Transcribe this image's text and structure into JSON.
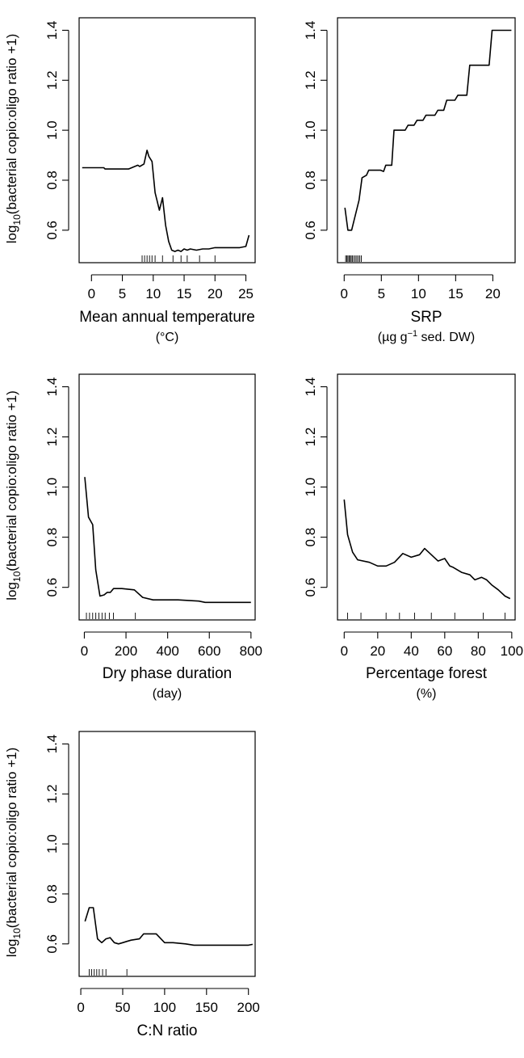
{
  "chart_data": [
    {
      "type": "line",
      "ylabel": "log",
      "ylabel_sub": "10",
      "ylabel_rest": "(bacterial copio:oligo ratio +1)",
      "xlabel": "Mean annual temperature",
      "xunit": "(°C)",
      "xunit_sup": "",
      "xunit_rest": "",
      "xlim": [
        -2,
        26.5
      ],
      "ylim": [
        0.47,
        1.45
      ],
      "xticks": [
        0,
        5,
        10,
        15,
        20,
        25
      ],
      "yticks": [
        0.6,
        0.8,
        1.0,
        1.2,
        1.4
      ],
      "ytick_labels": [
        "0.6",
        "0.8",
        "1.0",
        "1.2",
        "1.4"
      ],
      "x": [
        -1.5,
        2,
        2.2,
        6,
        7.5,
        7.8,
        8.5,
        9.0,
        9.3,
        9.8,
        10.3,
        10.6,
        11,
        11.5,
        12,
        12.5,
        13,
        13.5,
        14,
        14.5,
        15,
        15.5,
        16,
        17,
        18,
        19,
        20,
        21,
        24,
        25,
        25.5
      ],
      "y": [
        0.85,
        0.85,
        0.845,
        0.845,
        0.86,
        0.855,
        0.865,
        0.92,
        0.895,
        0.875,
        0.75,
        0.72,
        0.68,
        0.73,
        0.62,
        0.555,
        0.52,
        0.515,
        0.52,
        0.515,
        0.525,
        0.52,
        0.525,
        0.52,
        0.525,
        0.525,
        0.53,
        0.53,
        0.53,
        0.535,
        0.58
      ],
      "rug": [
        8.2,
        8.6,
        9.0,
        9.4,
        9.8,
        10.3,
        11.5,
        13.2,
        14.5,
        15.5,
        17.5,
        20.0
      ]
    },
    {
      "type": "line",
      "ylabel": "",
      "xlabel": "SRP",
      "xunit": "",
      "xunit_sup": "−1",
      "xunit_rest": "(µg g| sed. DW)",
      "xlim": [
        -0.9,
        23
      ],
      "ylim": [
        0.47,
        1.45
      ],
      "xticks": [
        0,
        5,
        10,
        15,
        20
      ],
      "yticks": [
        0.6,
        0.8,
        1.0,
        1.2,
        1.4
      ],
      "ytick_labels": [
        "0.6",
        "0.8",
        "1.0",
        "1.2",
        "1.4"
      ],
      "x": [
        0.1,
        0.5,
        1.0,
        2.0,
        2.4,
        3.0,
        3.3,
        4.9,
        5.3,
        5.6,
        6.4,
        6.7,
        8.2,
        8.6,
        9.4,
        9.8,
        10.6,
        11.0,
        12.2,
        12.6,
        13.4,
        13.8,
        14.9,
        15.3,
        16.5,
        16.9,
        18.3,
        18.7,
        19.5,
        19.9,
        22.5
      ],
      "y": [
        0.69,
        0.6,
        0.6,
        0.72,
        0.81,
        0.82,
        0.84,
        0.84,
        0.835,
        0.86,
        0.86,
        1.0,
        1.0,
        1.02,
        1.02,
        1.04,
        1.04,
        1.06,
        1.06,
        1.08,
        1.08,
        1.12,
        1.12,
        1.14,
        1.14,
        1.26,
        1.26,
        1.26,
        1.26,
        1.4,
        1.4
      ],
      "rug": [
        0.2,
        0.35,
        0.5,
        0.65,
        0.8,
        0.95,
        1.1,
        1.3,
        1.5,
        1.7,
        1.9,
        2.1,
        2.3
      ]
    },
    {
      "type": "line",
      "ylabel": "log",
      "ylabel_sub": "10",
      "ylabel_rest": "(bacterial copio:oligo ratio +1)",
      "xlabel": "Dry phase duration",
      "xunit": "(day)",
      "xunit_sup": "",
      "xunit_rest": "",
      "xlim": [
        -25,
        820
      ],
      "ylim": [
        0.47,
        1.45
      ],
      "xticks": [
        0,
        200,
        400,
        600,
        800
      ],
      "yticks": [
        0.6,
        0.8,
        1.0,
        1.2,
        1.4
      ],
      "ytick_labels": [
        "0.6",
        "0.8",
        "1.0",
        "1.2",
        "1.4"
      ],
      "x": [
        2,
        20,
        40,
        55,
        75,
        95,
        110,
        125,
        140,
        180,
        240,
        280,
        330,
        450,
        550,
        580,
        800
      ],
      "y": [
        1.04,
        0.88,
        0.85,
        0.67,
        0.565,
        0.57,
        0.58,
        0.58,
        0.595,
        0.595,
        0.59,
        0.56,
        0.55,
        0.55,
        0.545,
        0.54,
        0.54
      ],
      "rug": [
        10,
        25,
        40,
        55,
        70,
        85,
        100,
        120,
        140,
        245
      ]
    },
    {
      "type": "line",
      "ylabel": "",
      "xlabel": "Percentage forest",
      "xunit": "(%)",
      "xunit_sup": "",
      "xunit_rest": "",
      "xlim": [
        -4,
        102
      ],
      "ylim": [
        0.47,
        1.45
      ],
      "xticks": [
        0,
        20,
        40,
        60,
        80,
        100
      ],
      "yticks": [
        0.6,
        0.8,
        1.0,
        1.2,
        1.4
      ],
      "ytick_labels": [
        "0.6",
        "0.8",
        "1.0",
        "1.2",
        "1.4"
      ],
      "x": [
        0,
        2,
        5,
        8,
        15,
        20,
        25,
        30,
        35,
        40,
        45,
        48,
        52,
        56,
        60,
        63,
        65,
        70,
        75,
        78,
        82,
        85,
        88,
        92,
        96,
        99
      ],
      "y": [
        0.95,
        0.81,
        0.74,
        0.71,
        0.7,
        0.685,
        0.685,
        0.7,
        0.735,
        0.72,
        0.73,
        0.755,
        0.73,
        0.705,
        0.715,
        0.685,
        0.68,
        0.66,
        0.65,
        0.63,
        0.64,
        0.63,
        0.61,
        0.59,
        0.565,
        0.555
      ],
      "rug": [
        2,
        10,
        25,
        33,
        42,
        52,
        66,
        83,
        96
      ]
    },
    {
      "type": "line",
      "ylabel": "log",
      "ylabel_sub": "10",
      "ylabel_rest": "(bacterial copio:oligo ratio +1)",
      "xlabel": "C:N ratio",
      "xunit": "",
      "xunit_sup": "",
      "xunit_rest": "",
      "xlim": [
        -2,
        208
      ],
      "ylim": [
        0.47,
        1.45
      ],
      "xticks": [
        0,
        50,
        100,
        150,
        200
      ],
      "yticks": [
        0.6,
        0.8,
        1.0,
        1.2,
        1.4
      ],
      "ytick_labels": [
        "0.6",
        "0.8",
        "1.0",
        "1.2",
        "1.4"
      ],
      "x": [
        5,
        10,
        15,
        20,
        25,
        30,
        35,
        40,
        45,
        50,
        55,
        60,
        70,
        75,
        80,
        90,
        100,
        110,
        125,
        135,
        150,
        200,
        205
      ],
      "y": [
        0.69,
        0.745,
        0.745,
        0.62,
        0.605,
        0.62,
        0.625,
        0.605,
        0.6,
        0.605,
        0.61,
        0.615,
        0.62,
        0.64,
        0.64,
        0.64,
        0.605,
        0.605,
        0.6,
        0.595,
        0.595,
        0.595,
        0.598
      ],
      "rug": [
        10,
        13,
        16,
        19,
        22,
        26,
        30,
        55
      ]
    }
  ]
}
